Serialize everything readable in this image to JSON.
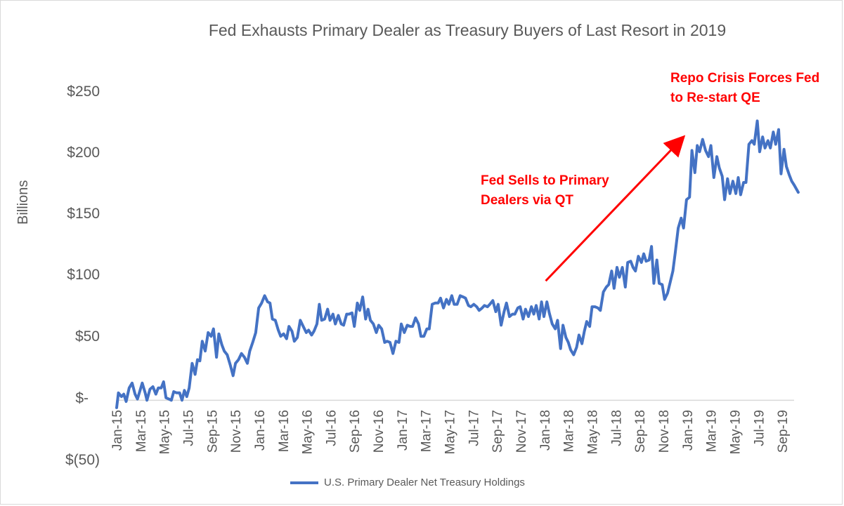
{
  "chart_data": {
    "type": "line",
    "title": "Fed Exhausts Primary Dealer as Treasury Buyers of Last Resort in 2019",
    "xlabel": "",
    "ylabel": "Billions",
    "ylim": [
      -50,
      250
    ],
    "y_ticks": [
      {
        "value": 250,
        "label": "$250"
      },
      {
        "value": 200,
        "label": "$200"
      },
      {
        "value": 150,
        "label": "$150"
      },
      {
        "value": 100,
        "label": "$100"
      },
      {
        "value": 50,
        "label": "$50"
      },
      {
        "value": 0,
        "label": "$-"
      },
      {
        "value": -50,
        "label": "$(50)"
      }
    ],
    "x_tick_labels": [
      "Jan-15",
      "Mar-15",
      "May-15",
      "Jul-15",
      "Sep-15",
      "Nov-15",
      "Jan-16",
      "Mar-16",
      "May-16",
      "Jul-16",
      "Sep-16",
      "Nov-16",
      "Jan-17",
      "Mar-17",
      "May-17",
      "Jul-17",
      "Sep-17",
      "Nov-17",
      "Jan-18",
      "Mar-18",
      "May-18",
      "Jul-18",
      "Sep-18",
      "Nov-18",
      "Jan-19",
      "Mar-19",
      "May-19",
      "Jul-19",
      "Sep-19"
    ],
    "x_range": [
      0,
      57
    ],
    "grid": false,
    "series": [
      {
        "name": "U.S. Primary Dealer Net Treasury Holdings",
        "color": "#4472c4",
        "points": [
          [
            0.0,
            -6
          ],
          [
            0.15,
            6
          ],
          [
            0.4,
            3
          ],
          [
            0.6,
            5
          ],
          [
            0.8,
            -1
          ],
          [
            1.05,
            10
          ],
          [
            1.3,
            14
          ],
          [
            1.55,
            5
          ],
          [
            1.75,
            1
          ],
          [
            2.0,
            9
          ],
          [
            2.15,
            14
          ],
          [
            2.4,
            6
          ],
          [
            2.55,
            0
          ],
          [
            2.8,
            9
          ],
          [
            3.05,
            11
          ],
          [
            3.3,
            5
          ],
          [
            3.5,
            10
          ],
          [
            3.75,
            10
          ],
          [
            3.95,
            15
          ],
          [
            4.15,
            2
          ],
          [
            4.4,
            1
          ],
          [
            4.6,
            0
          ],
          [
            4.8,
            7
          ],
          [
            5.05,
            6
          ],
          [
            5.3,
            6
          ],
          [
            5.5,
            0
          ],
          [
            5.7,
            8
          ],
          [
            5.9,
            3
          ],
          [
            6.1,
            10
          ],
          [
            6.35,
            30
          ],
          [
            6.6,
            21
          ],
          [
            6.8,
            33
          ],
          [
            7.0,
            32
          ],
          [
            7.2,
            48
          ],
          [
            7.45,
            40
          ],
          [
            7.7,
            55
          ],
          [
            7.95,
            52
          ],
          [
            8.15,
            58
          ],
          [
            8.4,
            35
          ],
          [
            8.6,
            54
          ],
          [
            8.85,
            45
          ],
          [
            9.05,
            40
          ],
          [
            9.3,
            37
          ],
          [
            9.55,
            29
          ],
          [
            9.8,
            20
          ],
          [
            10.0,
            30
          ],
          [
            10.25,
            33
          ],
          [
            10.5,
            38
          ],
          [
            10.75,
            35
          ],
          [
            11.0,
            30
          ],
          [
            11.2,
            40
          ],
          [
            11.45,
            47
          ],
          [
            11.7,
            55
          ],
          [
            11.95,
            75
          ],
          [
            12.2,
            79
          ],
          [
            12.45,
            85
          ],
          [
            12.7,
            80
          ],
          [
            12.9,
            79
          ],
          [
            13.1,
            66
          ],
          [
            13.35,
            65
          ],
          [
            13.6,
            57
          ],
          [
            13.8,
            52
          ],
          [
            14.05,
            54
          ],
          [
            14.3,
            50
          ],
          [
            14.5,
            60
          ],
          [
            14.75,
            56
          ],
          [
            14.95,
            48
          ],
          [
            15.2,
            51
          ],
          [
            15.45,
            65
          ],
          [
            15.7,
            60
          ],
          [
            15.95,
            55
          ],
          [
            16.15,
            57
          ],
          [
            16.4,
            53
          ],
          [
            16.6,
            56
          ],
          [
            16.85,
            62
          ],
          [
            17.05,
            78
          ],
          [
            17.25,
            65
          ],
          [
            17.5,
            66
          ],
          [
            17.75,
            74
          ],
          [
            17.95,
            65
          ],
          [
            18.2,
            70
          ],
          [
            18.4,
            62
          ],
          [
            18.65,
            69
          ],
          [
            18.9,
            62
          ],
          [
            19.1,
            61
          ],
          [
            19.35,
            70
          ],
          [
            19.55,
            70
          ],
          [
            19.8,
            71
          ],
          [
            20.0,
            60
          ],
          [
            20.25,
            79
          ],
          [
            20.45,
            73
          ],
          [
            20.7,
            84
          ],
          [
            20.95,
            66
          ],
          [
            21.15,
            74
          ],
          [
            21.35,
            65
          ],
          [
            21.6,
            62
          ],
          [
            21.85,
            55
          ],
          [
            22.05,
            61
          ],
          [
            22.3,
            58
          ],
          [
            22.55,
            47
          ],
          [
            22.75,
            48
          ],
          [
            23.0,
            47
          ],
          [
            23.25,
            38
          ],
          [
            23.5,
            48
          ],
          [
            23.75,
            47
          ],
          [
            23.95,
            62
          ],
          [
            24.2,
            55
          ],
          [
            24.45,
            61
          ],
          [
            24.7,
            60
          ],
          [
            24.9,
            60
          ],
          [
            25.15,
            67
          ],
          [
            25.4,
            62
          ],
          [
            25.6,
            52
          ],
          [
            25.85,
            52
          ],
          [
            26.1,
            58
          ],
          [
            26.3,
            58
          ],
          [
            26.55,
            78
          ],
          [
            26.8,
            79
          ],
          [
            27.05,
            79
          ],
          [
            27.25,
            83
          ],
          [
            27.5,
            75
          ],
          [
            27.75,
            82
          ],
          [
            27.95,
            78
          ],
          [
            28.2,
            85
          ],
          [
            28.4,
            78
          ],
          [
            28.65,
            78
          ],
          [
            28.9,
            85
          ],
          [
            29.15,
            84
          ],
          [
            29.35,
            83
          ],
          [
            29.6,
            77
          ],
          [
            29.8,
            76
          ],
          [
            30.05,
            78
          ],
          [
            30.3,
            76
          ],
          [
            30.5,
            73
          ],
          [
            30.75,
            75
          ],
          [
            30.95,
            77
          ],
          [
            31.2,
            76
          ],
          [
            31.4,
            78
          ],
          [
            31.65,
            81
          ],
          [
            31.9,
            72
          ],
          [
            32.1,
            78
          ],
          [
            32.35,
            61
          ],
          [
            32.6,
            72
          ],
          [
            32.8,
            79
          ],
          [
            33.05,
            68
          ],
          [
            33.3,
            70
          ],
          [
            33.5,
            70
          ],
          [
            33.75,
            75
          ],
          [
            33.95,
            76
          ],
          [
            34.2,
            66
          ],
          [
            34.4,
            74
          ],
          [
            34.65,
            68
          ],
          [
            34.9,
            76
          ],
          [
            35.1,
            70
          ],
          [
            35.3,
            77
          ],
          [
            35.55,
            66
          ],
          [
            35.75,
            80
          ],
          [
            35.95,
            68
          ],
          [
            36.2,
            80
          ],
          [
            36.4,
            71
          ],
          [
            36.65,
            62
          ],
          [
            36.9,
            58
          ],
          [
            37.1,
            65
          ],
          [
            37.35,
            42
          ],
          [
            37.55,
            61
          ],
          [
            37.8,
            51
          ],
          [
            38.0,
            47
          ],
          [
            38.2,
            41
          ],
          [
            38.45,
            37
          ],
          [
            38.7,
            43
          ],
          [
            38.9,
            53
          ],
          [
            39.15,
            46
          ],
          [
            39.35,
            56
          ],
          [
            39.55,
            64
          ],
          [
            39.8,
            60
          ],
          [
            40.0,
            76
          ],
          [
            40.25,
            76
          ],
          [
            40.5,
            75
          ],
          [
            40.7,
            73
          ],
          [
            40.95,
            88
          ],
          [
            41.2,
            92
          ],
          [
            41.4,
            94
          ],
          [
            41.65,
            105
          ],
          [
            41.85,
            91
          ],
          [
            42.1,
            108
          ],
          [
            42.3,
            100
          ],
          [
            42.55,
            108
          ],
          [
            42.8,
            92
          ],
          [
            43.0,
            112
          ],
          [
            43.25,
            113
          ],
          [
            43.45,
            108
          ],
          [
            43.65,
            105
          ],
          [
            43.9,
            117
          ],
          [
            44.15,
            112
          ],
          [
            44.35,
            119
          ],
          [
            44.55,
            113
          ],
          [
            44.8,
            114
          ],
          [
            45.0,
            125
          ],
          [
            45.2,
            95
          ],
          [
            45.45,
            114
          ],
          [
            45.65,
            95
          ],
          [
            45.9,
            94
          ],
          [
            46.1,
            82
          ],
          [
            46.35,
            87
          ],
          [
            46.55,
            95
          ],
          [
            46.8,
            105
          ],
          [
            47.0,
            120
          ],
          [
            47.25,
            140
          ],
          [
            47.5,
            148
          ],
          [
            47.7,
            140
          ],
          [
            47.95,
            163
          ],
          [
            48.2,
            165
          ],
          [
            48.4,
            203
          ],
          [
            48.65,
            185
          ],
          [
            48.85,
            207
          ],
          [
            49.05,
            202
          ],
          [
            49.3,
            212
          ],
          [
            49.55,
            203
          ],
          [
            49.8,
            198
          ],
          [
            50.0,
            207
          ],
          [
            50.25,
            181
          ],
          [
            50.5,
            198
          ],
          [
            50.7,
            189
          ],
          [
            50.95,
            182
          ],
          [
            51.15,
            163
          ],
          [
            51.4,
            180
          ],
          [
            51.6,
            168
          ],
          [
            51.85,
            178
          ],
          [
            52.1,
            168
          ],
          [
            52.3,
            181
          ],
          [
            52.5,
            167
          ],
          [
            52.75,
            177
          ],
          [
            52.95,
            177
          ],
          [
            53.2,
            208
          ],
          [
            53.45,
            211
          ],
          [
            53.65,
            208
          ],
          [
            53.9,
            227
          ],
          [
            54.1,
            202
          ],
          [
            54.35,
            214
          ],
          [
            54.55,
            205
          ],
          [
            54.8,
            211
          ],
          [
            55.0,
            205
          ],
          [
            55.25,
            218
          ],
          [
            55.45,
            208
          ],
          [
            55.7,
            220
          ],
          [
            55.9,
            184
          ],
          [
            56.15,
            204
          ],
          [
            56.35,
            190
          ],
          [
            56.6,
            183
          ],
          [
            56.8,
            178
          ],
          [
            57.0,
            175
          ],
          [
            57.35,
            169
          ]
        ]
      }
    ],
    "annotations": [
      {
        "text": "Fed Sells to Primary Dealers via QT",
        "lines": [
          "Fed Sells to Primary",
          "Dealers via QT"
        ]
      },
      {
        "text": "Repo Crisis Forces Fed to Re-start QE",
        "lines": [
          "Repo Crisis Forces Fed",
          "to Re-start QE"
        ]
      }
    ],
    "arrow": {
      "from": {
        "x": 36.1,
        "y": 97
      },
      "to": {
        "x": 47.6,
        "y": 213
      },
      "color": "#ff0000"
    },
    "legend": {
      "position": "bottom"
    }
  }
}
